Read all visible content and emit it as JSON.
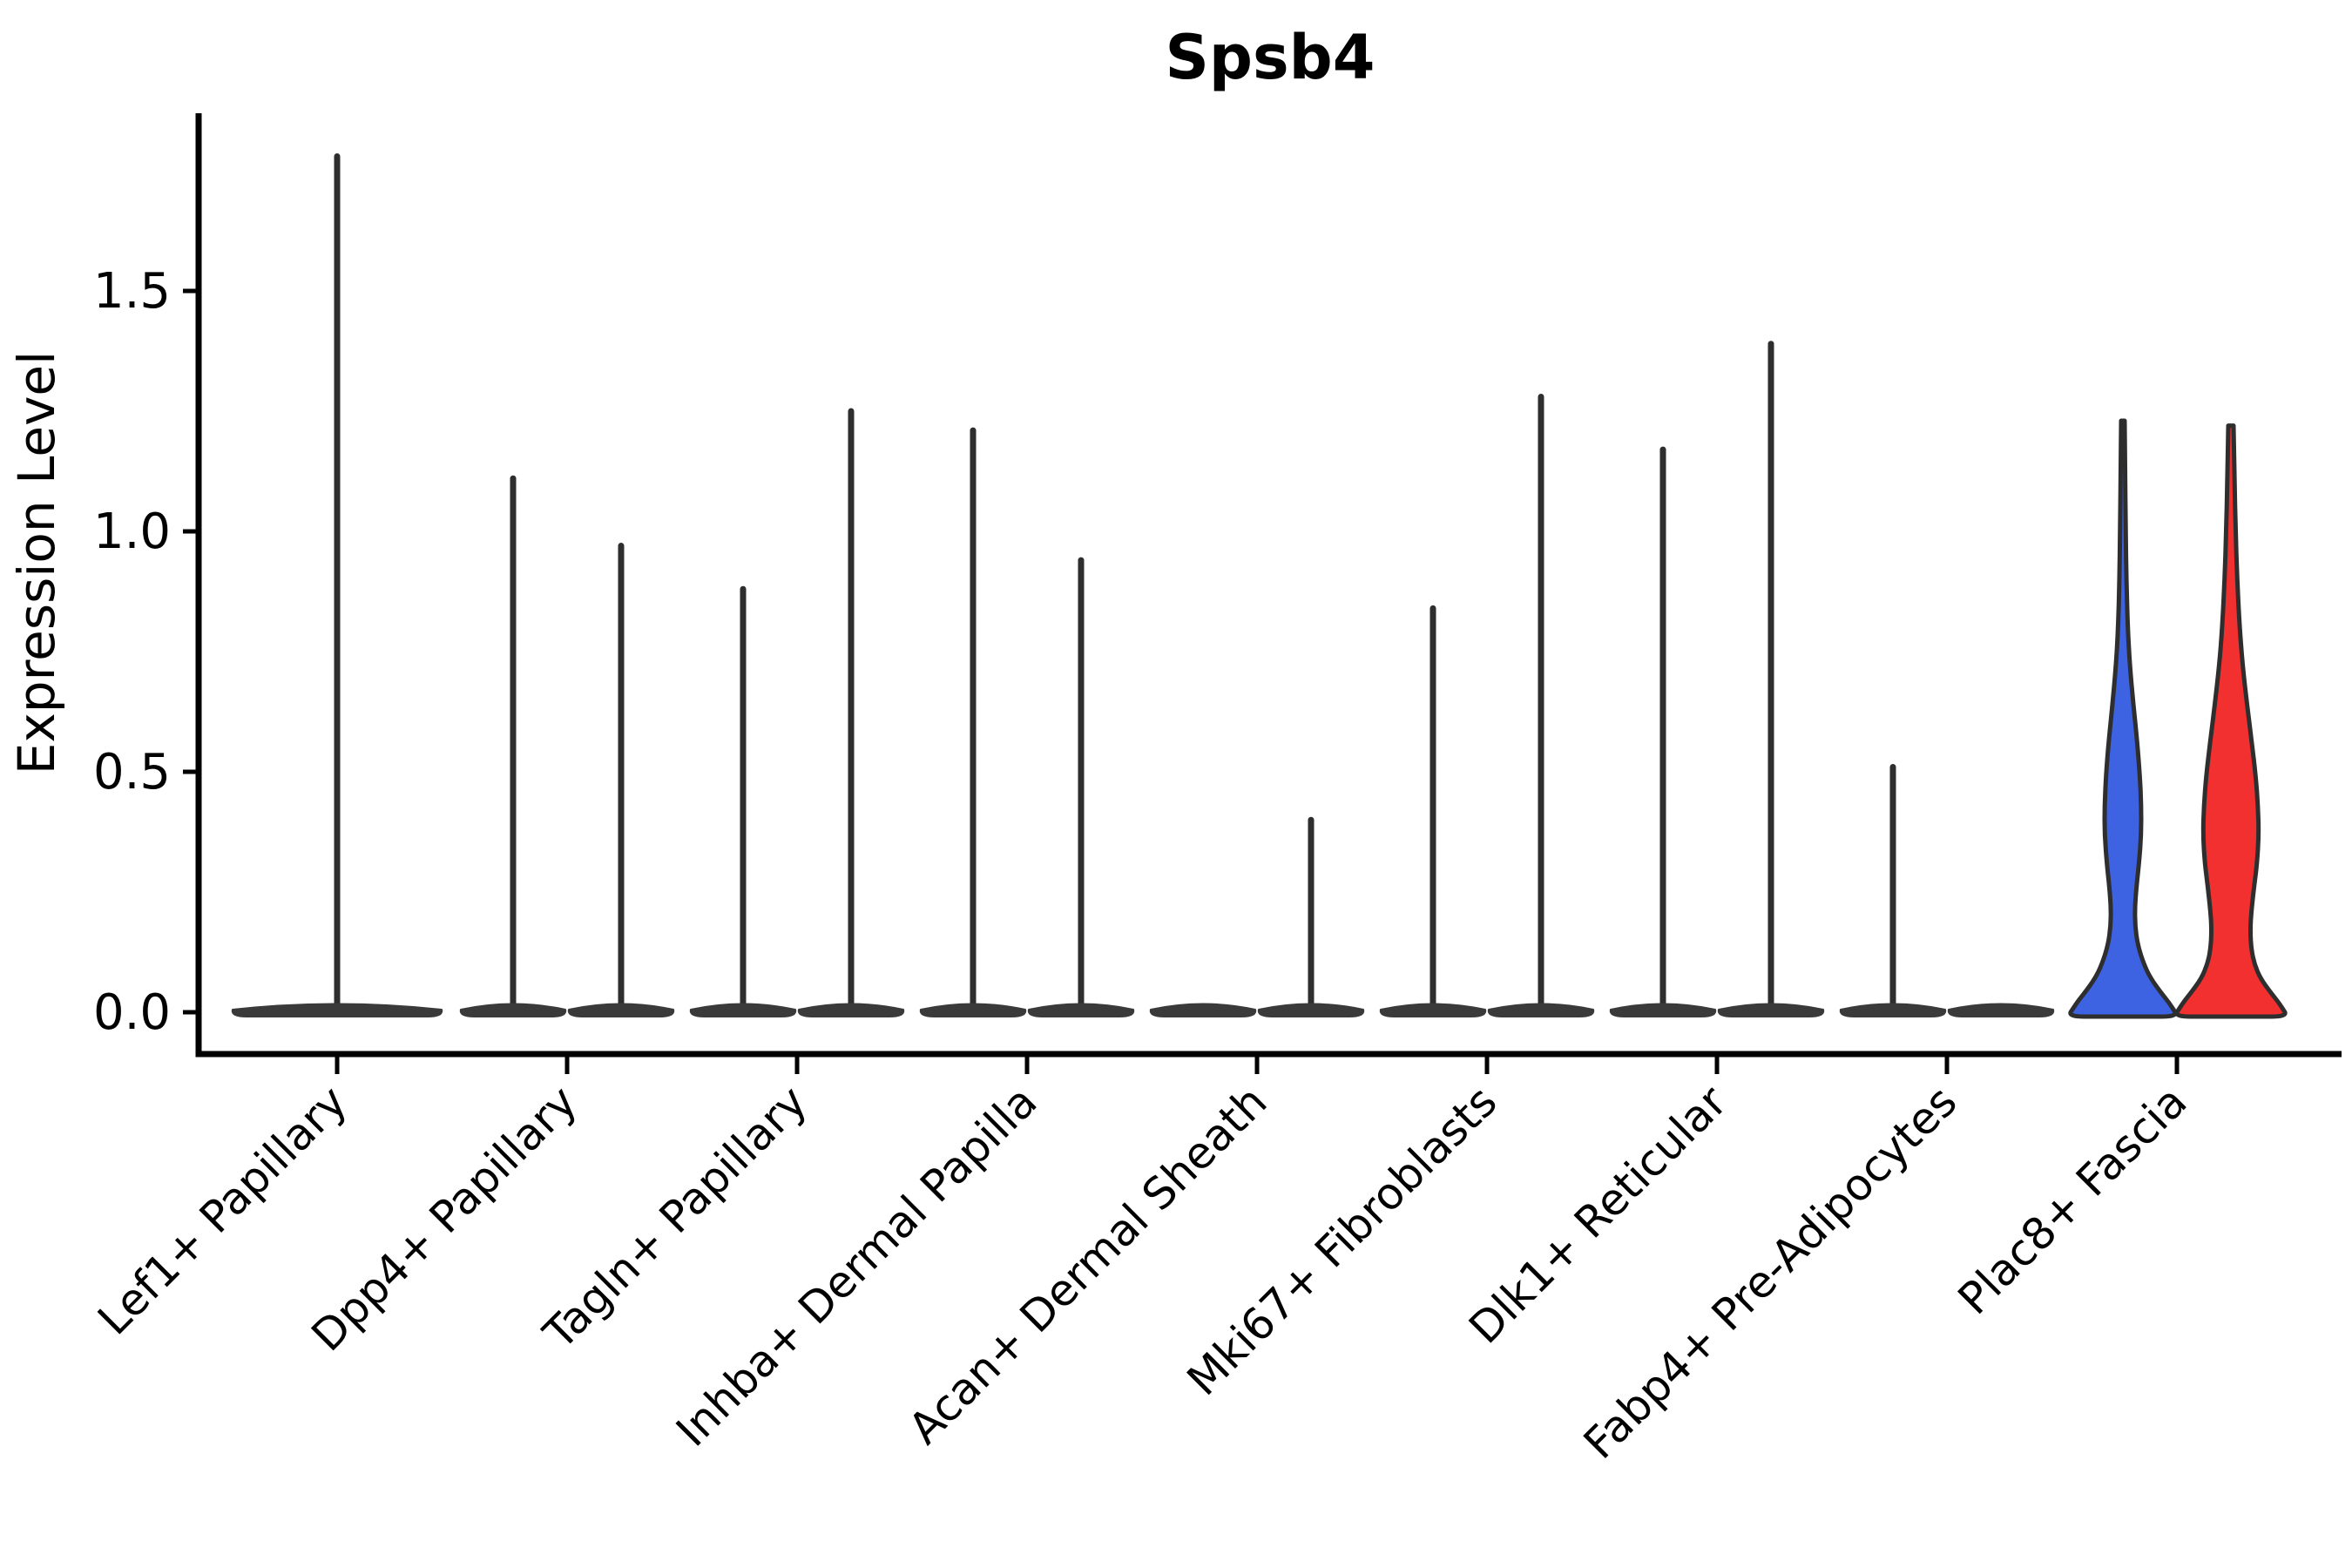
{
  "title": "Spsb4",
  "y_axis": {
    "label": "Expression Level",
    "ticks": [
      {
        "label": "0.0",
        "value": 0.0
      },
      {
        "label": "0.5",
        "value": 0.5
      },
      {
        "label": "1.0",
        "value": 1.0
      },
      {
        "label": "1.5",
        "value": 1.5
      }
    ]
  },
  "colors": {
    "group1_fill": "#3D63E3",
    "group2_fill": "#F23030",
    "outline": "#2E2E2E",
    "thin_violin": "#3A3A3A",
    "axis": "#000000",
    "background": "#ffffff"
  },
  "chart_data": {
    "type": "violin",
    "title": "Spsb4",
    "xlabel": "",
    "ylabel": "Expression Level",
    "ylim": [
      -0.1,
      1.86
    ],
    "y_ticks": [
      0.0,
      0.5,
      1.0,
      1.5
    ],
    "grid": false,
    "legend_position": "none",
    "categories": [
      "Lef1+ Papillary",
      "Dpp4+ Papillary",
      "Tagln+ Papillary",
      "Inhba+ Dermal Papilla",
      "Acan+ Dermal Sheath",
      "Mki67+ Fibroblasts",
      "Dlk1+ Reticular",
      "Fabp4+ Pre-Adipocytes",
      "Plac8+ Fascia"
    ],
    "violins": [
      {
        "category": "Lef1+ Papillary",
        "items": [
          {
            "position": "center",
            "max": 1.78,
            "spike": true,
            "style": "thin"
          }
        ]
      },
      {
        "category": "Dpp4+ Papillary",
        "items": [
          {
            "position": "left",
            "max": 1.11,
            "spike": true,
            "style": "thin"
          },
          {
            "position": "right",
            "max": 0.97,
            "spike": true,
            "style": "thin"
          }
        ]
      },
      {
        "category": "Tagln+ Papillary",
        "items": [
          {
            "position": "left",
            "max": 0.88,
            "spike": true,
            "style": "thin"
          },
          {
            "position": "right",
            "max": 1.25,
            "spike": true,
            "style": "thin"
          }
        ]
      },
      {
        "category": "Inhba+ Dermal Papilla",
        "items": [
          {
            "position": "left",
            "max": 1.21,
            "spike": true,
            "style": "thin"
          },
          {
            "position": "right",
            "max": 0.94,
            "spike": true,
            "style": "thin"
          }
        ]
      },
      {
        "category": "Acan+ Dermal Sheath",
        "items": [
          {
            "position": "left",
            "max": 0.0,
            "spike": false,
            "style": "thin"
          },
          {
            "position": "right",
            "max": 0.4,
            "spike": true,
            "style": "thin"
          }
        ]
      },
      {
        "category": "Mki67+ Fibroblasts",
        "items": [
          {
            "position": "left",
            "max": 0.84,
            "spike": true,
            "style": "thin"
          },
          {
            "position": "right",
            "max": 1.28,
            "spike": true,
            "style": "thin"
          }
        ]
      },
      {
        "category": "Dlk1+ Reticular",
        "items": [
          {
            "position": "left",
            "max": 1.17,
            "spike": true,
            "style": "thin"
          },
          {
            "position": "right",
            "max": 1.39,
            "spike": true,
            "style": "thin"
          }
        ]
      },
      {
        "category": "Fabp4+ Pre-Adipocytes",
        "items": [
          {
            "position": "left",
            "max": 0.51,
            "spike": true,
            "style": "thin"
          },
          {
            "position": "right",
            "max": 0.0,
            "spike": false,
            "style": "thin"
          }
        ]
      },
      {
        "category": "Plac8+ Fascia",
        "items": [
          {
            "position": "left",
            "max": 1.23,
            "spike": false,
            "style": "filled",
            "fill": "#3D63E3",
            "profile": [
              [
                1.23,
                2
              ],
              [
                1.12,
                2.6
              ],
              [
                1.0,
                3.2
              ],
              [
                0.9,
                4
              ],
              [
                0.8,
                5.5
              ],
              [
                0.72,
                8
              ],
              [
                0.64,
                12
              ],
              [
                0.56,
                16.5
              ],
              [
                0.49,
                19.5
              ],
              [
                0.43,
                21
              ],
              [
                0.37,
                21
              ],
              [
                0.31,
                18.5
              ],
              [
                0.26,
                15.5
              ],
              [
                0.22,
                13.8
              ],
              [
                0.18,
                14
              ],
              [
                0.14,
                17
              ],
              [
                0.1,
                24
              ],
              [
                0.07,
                32
              ],
              [
                0.04,
                44
              ],
              [
                0.02,
                53
              ],
              [
                0.0,
                60
              ]
            ]
          },
          {
            "position": "right",
            "max": 1.22,
            "spike": false,
            "style": "filled",
            "fill": "#F23030",
            "profile": [
              [
                1.22,
                3
              ],
              [
                1.1,
                4.2
              ],
              [
                1.0,
                5.5
              ],
              [
                0.9,
                7.2
              ],
              [
                0.8,
                10
              ],
              [
                0.72,
                13.5
              ],
              [
                0.64,
                18.5
              ],
              [
                0.56,
                24
              ],
              [
                0.49,
                28.5
              ],
              [
                0.43,
                31
              ],
              [
                0.37,
                32
              ],
              [
                0.31,
                30
              ],
              [
                0.26,
                26.5
              ],
              [
                0.21,
                23.5
              ],
              [
                0.17,
                22.2
              ],
              [
                0.13,
                23.5
              ],
              [
                0.1,
                27
              ],
              [
                0.07,
                34
              ],
              [
                0.04,
                46
              ],
              [
                0.02,
                55
              ],
              [
                0.0,
                62
              ]
            ]
          }
        ]
      }
    ]
  }
}
